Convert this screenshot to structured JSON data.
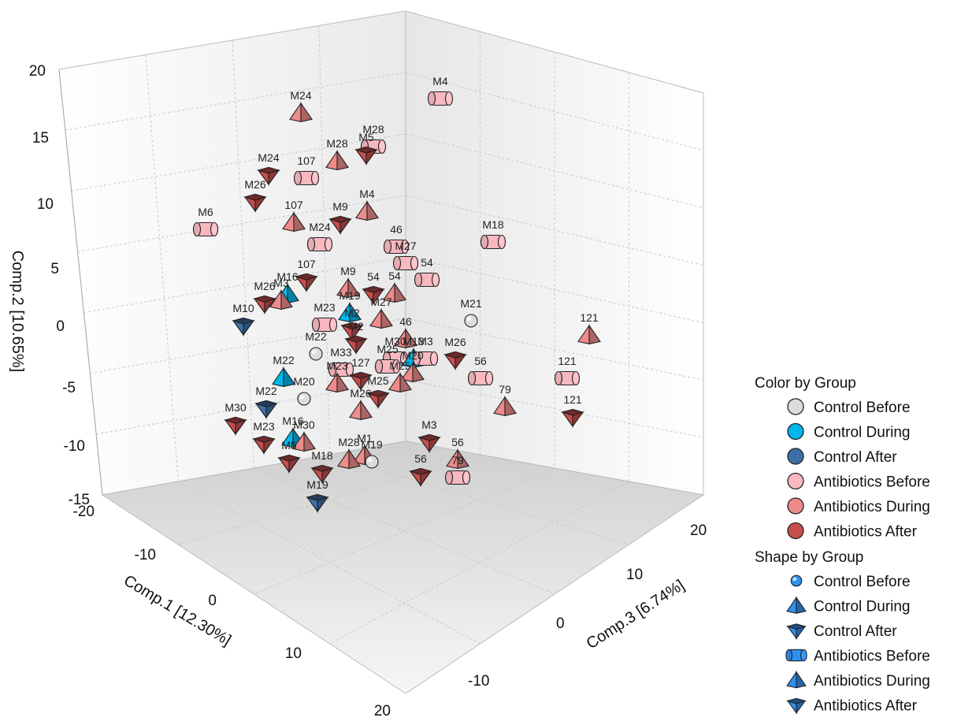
{
  "chart_data": {
    "type": "scatter",
    "title": "",
    "axes": {
      "x": {
        "label": "Comp.1 [12.30%]",
        "range": [
          -20,
          20
        ],
        "ticks": [
          "-10",
          "0",
          "10",
          "20"
        ]
      },
      "y": {
        "label": "Comp.2 [10.65%]",
        "range": [
          -15,
          20
        ],
        "ticks": [
          "-15",
          "-10",
          "-5",
          "0",
          "5",
          "10",
          "15",
          "20"
        ]
      },
      "z": {
        "label": "Comp.3 [6.74%]",
        "range": [
          -20,
          20
        ],
        "ticks": [
          "-10",
          "0",
          "10",
          "20"
        ]
      }
    },
    "x_bottom_tick": "-20",
    "grid": true,
    "legend_placement": "right",
    "legend": {
      "color_title": "Color by Group",
      "shape_title": "Shape by Group",
      "groups": [
        {
          "key": "cb",
          "name": "Control Before",
          "color": "#dcdcdc",
          "shape": "sphere"
        },
        {
          "key": "cd",
          "name": "Control During",
          "color": "#00b6ec",
          "shape": "pyramid-up"
        },
        {
          "key": "ca",
          "name": "Control After",
          "color": "#3f6fa8",
          "shape": "pyramid-down"
        },
        {
          "key": "ab",
          "name": "Antibiotics Before",
          "color": "#f7b8c0",
          "shape": "cylinder"
        },
        {
          "key": "ad",
          "name": "Antibiotics During",
          "color": "#ef8b8b",
          "shape": "pyramid-up"
        },
        {
          "key": "aa",
          "name": "Antibiotics After",
          "color": "#c84d4d",
          "shape": "pyramid-down"
        }
      ],
      "shape_icon_color": "#2f8ff0"
    },
    "points": [
      {
        "label": "M4",
        "group": "ab",
        "sx": 559,
        "sy": 125
      },
      {
        "label": "M24",
        "group": "ad",
        "sx": 382,
        "sy": 143
      },
      {
        "label": "M28",
        "group": "ab",
        "sx": 474,
        "sy": 186
      },
      {
        "label": "M28",
        "group": "ad",
        "sx": 428,
        "sy": 204
      },
      {
        "label": "M5",
        "group": "aa",
        "sx": 465,
        "sy": 196
      },
      {
        "label": "M24",
        "group": "aa",
        "sx": 341,
        "sy": 222
      },
      {
        "label": "107",
        "group": "ab",
        "sx": 389,
        "sy": 226
      },
      {
        "label": "M26",
        "group": "aa",
        "sx": 324,
        "sy": 256
      },
      {
        "label": "M4",
        "group": "ad",
        "sx": 466,
        "sy": 268
      },
      {
        "label": "107",
        "group": "ad",
        "sx": 373,
        "sy": 282
      },
      {
        "label": "M9",
        "group": "aa",
        "sx": 432,
        "sy": 284
      },
      {
        "label": "M6",
        "group": "ab",
        "sx": 261,
        "sy": 291
      },
      {
        "label": "M24",
        "group": "ab",
        "sx": 406,
        "sy": 310
      },
      {
        "label": "M18",
        "group": "ab",
        "sx": 626,
        "sy": 307
      },
      {
        "label": "46",
        "group": "ab",
        "sx": 503,
        "sy": 313
      },
      {
        "label": "M27",
        "group": "ab",
        "sx": 515,
        "sy": 334
      },
      {
        "label": "54",
        "group": "ab",
        "sx": 542,
        "sy": 355
      },
      {
        "label": "107",
        "group": "aa",
        "sx": 389,
        "sy": 357
      },
      {
        "label": "M9",
        "group": "ad",
        "sx": 442,
        "sy": 366
      },
      {
        "label": "M16",
        "group": "cd",
        "sx": 365,
        "sy": 373
      },
      {
        "label": "54",
        "group": "aa",
        "sx": 474,
        "sy": 373
      },
      {
        "label": "54",
        "group": "ad",
        "sx": 501,
        "sy": 372
      },
      {
        "label": "M26",
        "group": "aa",
        "sx": 336,
        "sy": 385
      },
      {
        "label": "M3",
        "group": "ad",
        "sx": 357,
        "sy": 381
      },
      {
        "label": "M27",
        "group": "ad",
        "sx": 484,
        "sy": 405
      },
      {
        "label": "M21",
        "group": "cb",
        "sx": 598,
        "sy": 407
      },
      {
        "label": "M10",
        "group": "ca",
        "sx": 309,
        "sy": 413
      },
      {
        "label": "M23",
        "group": "ab",
        "sx": 412,
        "sy": 412
      },
      {
        "label": "M19",
        "group": "cd",
        "sx": 444,
        "sy": 397
      },
      {
        "label": "M2",
        "group": "aa",
        "sx": 447,
        "sy": 419
      },
      {
        "label": "121",
        "group": "ad",
        "sx": 748,
        "sy": 425
      },
      {
        "label": "46",
        "group": "ad",
        "sx": 515,
        "sy": 430
      },
      {
        "label": "M22",
        "group": "cb",
        "sx": 401,
        "sy": 449
      },
      {
        "label": "M26",
        "group": "aa",
        "sx": 578,
        "sy": 456
      },
      {
        "label": "M30",
        "group": "ab",
        "sx": 502,
        "sy": 455
      },
      {
        "label": "M13",
        "group": "cd",
        "sx": 525,
        "sy": 455
      },
      {
        "label": "M3",
        "group": "ab",
        "sx": 540,
        "sy": 455
      },
      {
        "label": "M33",
        "group": "ab",
        "sx": 433,
        "sy": 469
      },
      {
        "label": "M25",
        "group": "ab",
        "sx": 492,
        "sy": 465
      },
      {
        "label": "M2",
        "group": "aa",
        "sx": 452,
        "sy": 436
      },
      {
        "label": "56",
        "group": "ab",
        "sx": 610,
        "sy": 480
      },
      {
        "label": "121",
        "group": "ab",
        "sx": 720,
        "sy": 480
      },
      {
        "label": "M22",
        "group": "cd",
        "sx": 360,
        "sy": 479
      },
      {
        "label": "M23",
        "group": "ad",
        "sx": 428,
        "sy": 486
      },
      {
        "label": "127",
        "group": "aa",
        "sx": 458,
        "sy": 482
      },
      {
        "label": "M25",
        "group": "ad",
        "sx": 508,
        "sy": 486
      },
      {
        "label": "M20",
        "group": "ad",
        "sx": 524,
        "sy": 473
      },
      {
        "label": "M20",
        "group": "cb",
        "sx": 386,
        "sy": 506
      },
      {
        "label": "79",
        "group": "ad",
        "sx": 641,
        "sy": 516
      },
      {
        "label": "M25",
        "group": "aa",
        "sx": 480,
        "sy": 505
      },
      {
        "label": "M22",
        "group": "ca",
        "sx": 338,
        "sy": 518
      },
      {
        "label": "121",
        "group": "aa",
        "sx": 727,
        "sy": 529
      },
      {
        "label": "M26",
        "group": "ad",
        "sx": 458,
        "sy": 521
      },
      {
        "label": "M30",
        "group": "aa",
        "sx": 299,
        "sy": 539
      },
      {
        "label": "M16",
        "group": "cd",
        "sx": 372,
        "sy": 556
      },
      {
        "label": "M30",
        "group": "ad",
        "sx": 386,
        "sy": 561
      },
      {
        "label": "M23",
        "group": "aa",
        "sx": 335,
        "sy": 563
      },
      {
        "label": "M3",
        "group": "aa",
        "sx": 545,
        "sy": 561
      },
      {
        "label": "M5",
        "group": "aa",
        "sx": 367,
        "sy": 587
      },
      {
        "label": "M28",
        "group": "ad",
        "sx": 443,
        "sy": 583
      },
      {
        "label": "M1",
        "group": "ad",
        "sx": 463,
        "sy": 578
      },
      {
        "label": "M19",
        "group": "cb",
        "sx": 472,
        "sy": 586
      },
      {
        "label": "56",
        "group": "ad",
        "sx": 581,
        "sy": 583
      },
      {
        "label": "79",
        "group": "ab",
        "sx": 581,
        "sy": 606
      },
      {
        "label": "M18",
        "group": "aa",
        "sx": 409,
        "sy": 600
      },
      {
        "label": "56",
        "group": "aa",
        "sx": 534,
        "sy": 604
      },
      {
        "label": "M19",
        "group": "ca",
        "sx": 403,
        "sy": 637
      }
    ]
  }
}
